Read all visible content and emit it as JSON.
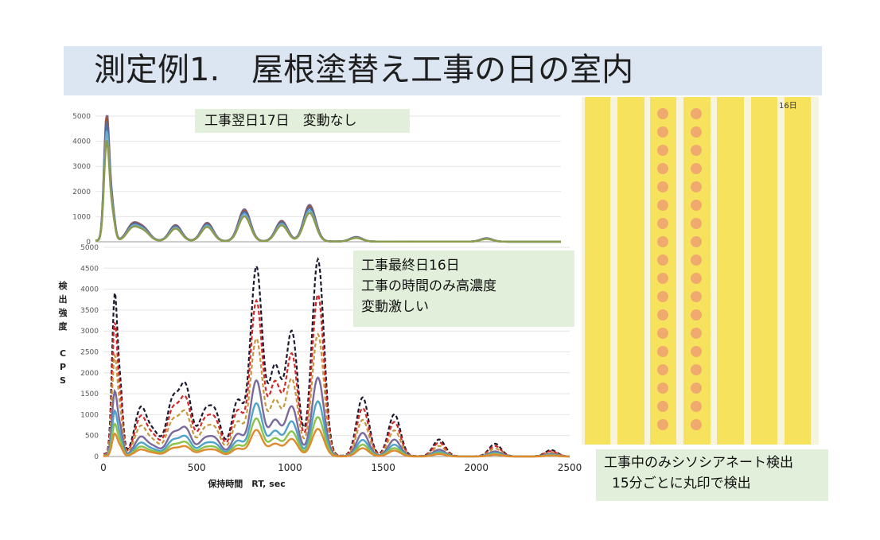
{
  "title": "測定例1.　屋根塗替え工事の日の室内",
  "notes": {
    "top": "工事翌日17日　変動なし",
    "bottom_lines": [
      "工事最終日16日",
      "工事の時間のみ高濃度",
      "変動激しい"
    ],
    "strips_lines": [
      "工事中のみシソシアネート検出",
      "15分ごとに丸印で検出"
    ],
    "strip_tag": "16日"
  },
  "colors": {
    "title_band": "#dce6f2",
    "note_bg": "#e2efda",
    "strip_yellow": "#f7e25e",
    "dot_color": "#eea070"
  },
  "chart_data": [
    {
      "type": "line",
      "title": "工事翌日17日　変動なし",
      "ylim": [
        0,
        5500
      ],
      "xlim": [
        0,
        2500
      ],
      "y_ticks": [
        "0",
        "1000",
        "2000",
        "3000",
        "4000",
        "5000"
      ],
      "grid": true,
      "peaks": [
        [
          60,
          5500
        ],
        [
          90,
          1400
        ],
        [
          200,
          700
        ],
        [
          260,
          500
        ],
        [
          430,
          700
        ],
        [
          600,
          800
        ],
        [
          800,
          1400
        ],
        [
          1000,
          900
        ],
        [
          1150,
          1600
        ],
        [
          1400,
          200
        ],
        [
          2100,
          150
        ]
      ],
      "series": [
        {
          "color": "#7b6a9d",
          "scale": 1.0
        },
        {
          "color": "#a0522d",
          "scale": 0.96
        },
        {
          "color": "#4b6ea8",
          "scale": 0.92
        },
        {
          "color": "#6fa8c8",
          "scale": 0.85
        },
        {
          "color": "#8b9c4a",
          "scale": 0.78
        }
      ]
    },
    {
      "type": "line",
      "title": "工事最終日16日",
      "xlabel": "保持時間　RT, sec",
      "ylabel_chars": [
        "検",
        "出",
        "強",
        "度",
        "",
        "C",
        "P",
        "S"
      ],
      "xlim": [
        0,
        2500
      ],
      "ylim": [
        0,
        5000
      ],
      "x_ticks": [
        "0",
        "500",
        "1000",
        "1500",
        "2000",
        "2500"
      ],
      "y_ticks": [
        "0",
        "500",
        "1000",
        "1500",
        "2000",
        "2500",
        "3000",
        "3500",
        "4000",
        "4500",
        "5000"
      ],
      "grid": true,
      "peaks": [
        [
          60,
          3700
        ],
        [
          90,
          1500
        ],
        [
          200,
          1100
        ],
        [
          270,
          500
        ],
        [
          370,
          1250
        ],
        [
          440,
          1600
        ],
        [
          540,
          900
        ],
        [
          600,
          950
        ],
        [
          720,
          1300
        ],
        [
          820,
          4500
        ],
        [
          920,
          2100
        ],
        [
          1010,
          2950
        ],
        [
          1150,
          4700
        ],
        [
          1390,
          1400
        ],
        [
          1560,
          1000
        ],
        [
          1800,
          400
        ],
        [
          2100,
          300
        ],
        [
          2400,
          150
        ]
      ],
      "series": [
        {
          "color": "#1a1a2e",
          "scale": 1.0,
          "dash": true
        },
        {
          "color": "#d62728",
          "scale": 0.82,
          "dash": true
        },
        {
          "color": "#c8963c",
          "scale": 0.62,
          "dash": true
        },
        {
          "color": "#7b6a9d",
          "scale": 0.4,
          "dash": false
        },
        {
          "color": "#4fa3c8",
          "scale": 0.28,
          "dash": false
        },
        {
          "color": "#8bc34a",
          "scale": 0.2,
          "dash": false
        },
        {
          "color": "#e08a2e",
          "scale": 0.14,
          "dash": false
        }
      ]
    }
  ]
}
